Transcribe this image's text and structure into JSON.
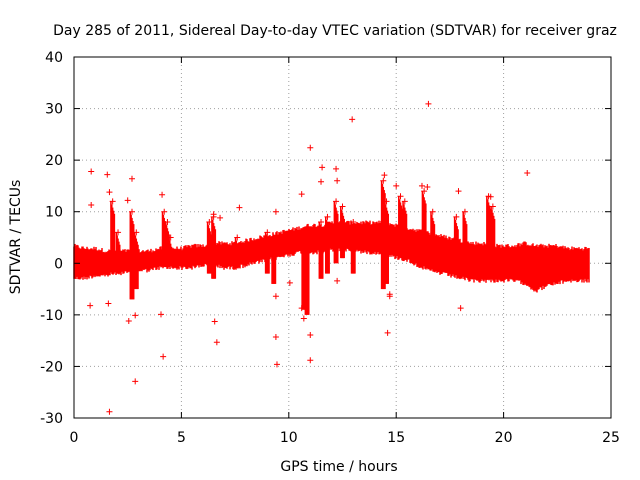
{
  "chart_data": {
    "type": "scatter",
    "title": "Day 285 of 2011, Sidereal Day-to-day VTEC variation (SDTVAR) for receiver graz",
    "xlabel": "GPS time / hours",
    "ylabel": "SDTVAR / TECUs",
    "xlim": [
      0,
      25
    ],
    "ylim": [
      -30,
      40
    ],
    "xticks": [
      0,
      5,
      10,
      15,
      20,
      25
    ],
    "yticks": [
      -30,
      -20,
      -10,
      0,
      10,
      20,
      30,
      40
    ],
    "xtick_labels": [
      "0",
      "5",
      "10",
      "15",
      "20",
      "25"
    ],
    "ytick_labels": [
      "-30",
      "-20",
      "-10",
      "0",
      "10",
      "20",
      "30",
      "40"
    ],
    "grid": true,
    "marker": "+",
    "color": "#ff0000",
    "series": [
      {
        "name": "SDTVAR",
        "band": {
          "x": [
            0,
            0.5,
            1,
            1.5,
            2,
            2.5,
            3,
            3.5,
            4,
            4.5,
            5,
            5.5,
            6,
            6.5,
            7,
            7.5,
            8,
            8.5,
            9,
            9.5,
            10,
            10.5,
            11,
            11.5,
            12,
            12.5,
            13,
            13.5,
            14,
            14.5,
            15,
            15.5,
            16,
            16.5,
            17,
            17.5,
            18,
            18.5,
            19,
            19.5,
            20,
            20.5,
            21,
            21.5,
            22,
            22.5,
            23,
            23.5,
            24
          ],
          "low": [
            -2.5,
            -2.5,
            -2,
            -2,
            -1.5,
            -1.5,
            -1,
            -1,
            -0.5,
            -0.5,
            -0.5,
            -0.5,
            0,
            0,
            -0.5,
            -0.5,
            0,
            0.5,
            1,
            1.5,
            2,
            2.5,
            2.5,
            2.5,
            3,
            3,
            3,
            2.5,
            2.5,
            2,
            1.5,
            1,
            0,
            -1,
            -1.5,
            -2,
            -2.5,
            -3,
            -3,
            -3,
            -3,
            -3,
            -3.5,
            -5,
            -4,
            -3.5,
            -3,
            -3,
            -3
          ],
          "high": [
            3,
            2.5,
            2.5,
            2,
            2,
            2,
            2,
            2,
            2.5,
            2.5,
            2.5,
            3,
            3,
            3.5,
            3.5,
            3.5,
            4,
            4.5,
            5,
            5.5,
            6,
            6.5,
            7,
            7,
            7.5,
            7.5,
            7.5,
            7.5,
            7.5,
            7.5,
            7,
            6.5,
            6,
            5.5,
            5,
            4.5,
            4,
            3.5,
            3.5,
            3,
            3,
            3,
            3.5,
            3,
            3,
            3,
            2.5,
            2.5,
            2.5
          ]
        },
        "spikes": [
          {
            "x": 1.8,
            "from": -1,
            "to": 12
          },
          {
            "x": 2.05,
            "from": -2,
            "to": 6
          },
          {
            "x": 2.7,
            "from": -7,
            "to": 10
          },
          {
            "x": 2.9,
            "from": -5,
            "to": 6
          },
          {
            "x": 4.2,
            "from": 1,
            "to": 10
          },
          {
            "x": 4.35,
            "from": 2,
            "to": 8
          },
          {
            "x": 4.5,
            "from": 2,
            "to": 5
          },
          {
            "x": 6.3,
            "from": -2,
            "to": 8
          },
          {
            "x": 6.5,
            "from": -3,
            "to": 9
          },
          {
            "x": 7.6,
            "from": 2,
            "to": 5
          },
          {
            "x": 9.0,
            "from": -2,
            "to": 6
          },
          {
            "x": 9.3,
            "from": -4,
            "to": 5
          },
          {
            "x": 10.7,
            "from": -9,
            "to": 6
          },
          {
            "x": 10.85,
            "from": -10,
            "to": 7
          },
          {
            "x": 11.5,
            "from": -3,
            "to": 8
          },
          {
            "x": 11.8,
            "from": -2,
            "to": 9
          },
          {
            "x": 12.2,
            "from": 0,
            "to": 12
          },
          {
            "x": 12.5,
            "from": 1,
            "to": 11
          },
          {
            "x": 13.0,
            "from": -2,
            "to": 8
          },
          {
            "x": 14.4,
            "from": -5,
            "to": 16
          },
          {
            "x": 14.55,
            "from": -4,
            "to": 12
          },
          {
            "x": 15.2,
            "from": 2,
            "to": 13
          },
          {
            "x": 15.4,
            "from": 1,
            "to": 12
          },
          {
            "x": 16.3,
            "from": 0,
            "to": 14
          },
          {
            "x": 16.7,
            "from": -1,
            "to": 10
          },
          {
            "x": 17.8,
            "from": 0,
            "to": 9
          },
          {
            "x": 18.2,
            "from": -1,
            "to": 10
          },
          {
            "x": 19.3,
            "from": 0,
            "to": 13
          },
          {
            "x": 19.5,
            "from": -1,
            "to": 11
          }
        ],
        "outliers": [
          {
            "x": 0.8,
            "y": 17.8
          },
          {
            "x": 0.8,
            "y": 11.3
          },
          {
            "x": 0.75,
            "y": -8.2
          },
          {
            "x": 1.55,
            "y": 17.2
          },
          {
            "x": 1.65,
            "y": 13.8
          },
          {
            "x": 1.6,
            "y": -7.8
          },
          {
            "x": 1.65,
            "y": -28.8
          },
          {
            "x": 2.5,
            "y": 12.2
          },
          {
            "x": 2.55,
            "y": -11.2
          },
          {
            "x": 2.7,
            "y": 16.4
          },
          {
            "x": 2.85,
            "y": -10.1
          },
          {
            "x": 2.85,
            "y": -22.9
          },
          {
            "x": 4.1,
            "y": 13.3
          },
          {
            "x": 4.05,
            "y": -9.9
          },
          {
            "x": 4.15,
            "y": -18.1
          },
          {
            "x": 6.5,
            "y": 9.5
          },
          {
            "x": 6.55,
            "y": -11.3
          },
          {
            "x": 6.65,
            "y": -15.3
          },
          {
            "x": 6.8,
            "y": 8.8
          },
          {
            "x": 7.7,
            "y": 10.8
          },
          {
            "x": 9.4,
            "y": 10.0
          },
          {
            "x": 9.4,
            "y": -6.4
          },
          {
            "x": 9.4,
            "y": -14.3
          },
          {
            "x": 9.45,
            "y": -19.6
          },
          {
            "x": 10.05,
            "y": -3.8
          },
          {
            "x": 10.6,
            "y": 13.4
          },
          {
            "x": 10.6,
            "y": -8.7
          },
          {
            "x": 10.7,
            "y": -10.7
          },
          {
            "x": 11.0,
            "y": 22.4
          },
          {
            "x": 11.0,
            "y": -13.9
          },
          {
            "x": 11.0,
            "y": -18.8
          },
          {
            "x": 11.5,
            "y": 15.8
          },
          {
            "x": 11.55,
            "y": 18.6
          },
          {
            "x": 12.2,
            "y": 18.3
          },
          {
            "x": 12.25,
            "y": 16.0
          },
          {
            "x": 12.25,
            "y": -3.4
          },
          {
            "x": 12.95,
            "y": 27.9
          },
          {
            "x": 14.45,
            "y": 17.1
          },
          {
            "x": 14.6,
            "y": -13.5
          },
          {
            "x": 14.7,
            "y": -6.4
          },
          {
            "x": 14.7,
            "y": -6.0
          },
          {
            "x": 15.0,
            "y": 15.0
          },
          {
            "x": 16.2,
            "y": 15.0
          },
          {
            "x": 16.45,
            "y": 14.8
          },
          {
            "x": 16.5,
            "y": 30.9
          },
          {
            "x": 17.9,
            "y": 14.0
          },
          {
            "x": 18.0,
            "y": -8.7
          },
          {
            "x": 19.4,
            "y": 12.9
          },
          {
            "x": 21.1,
            "y": 17.5
          }
        ]
      }
    ]
  }
}
